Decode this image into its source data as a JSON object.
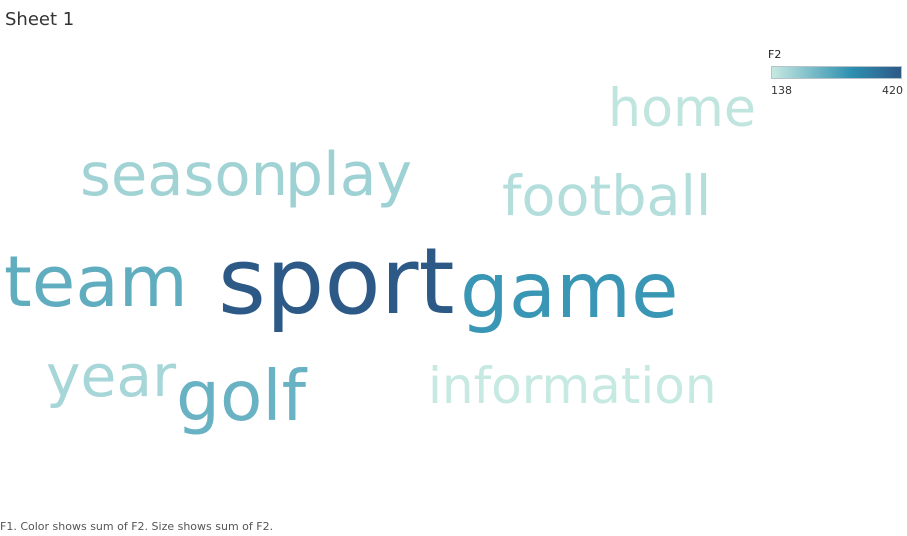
{
  "sheet": {
    "title": "Sheet 1",
    "caption": "F1.  Color shows sum of F2.  Size shows sum of F2."
  },
  "legend": {
    "title": "F2",
    "min_label": "138",
    "max_label": "420",
    "colors": [
      "#c6e9e1",
      "#2e8fb0",
      "#2d5987"
    ]
  },
  "chart_data": {
    "type": "wordcloud",
    "color_measure": "F2",
    "size_measure": "F2",
    "range": [
      138,
      420
    ],
    "words": [
      {
        "text": "sport",
        "value": 420
      },
      {
        "text": "game",
        "value": 300
      },
      {
        "text": "team",
        "value": 255
      },
      {
        "text": "golf",
        "value": 245
      },
      {
        "text": "play",
        "value": 185
      },
      {
        "text": "season",
        "value": 180
      },
      {
        "text": "year",
        "value": 175
      },
      {
        "text": "football",
        "value": 160
      },
      {
        "text": "home",
        "value": 145
      },
      {
        "text": "information",
        "value": 138
      }
    ]
  }
}
